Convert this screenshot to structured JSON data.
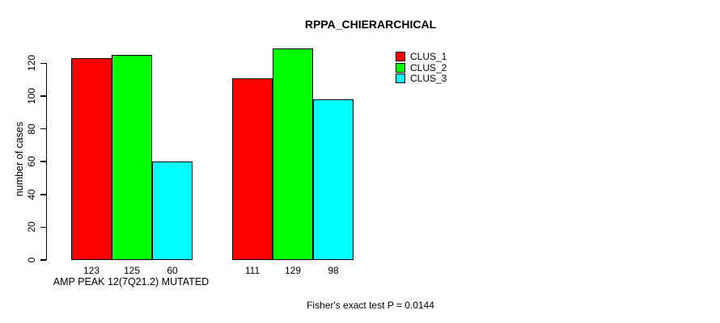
{
  "chart_data": {
    "type": "bar",
    "title": "RPPA_CHIERARCHICAL",
    "ylabel": "number of cases",
    "xlabel": "AMP PEAK 12(7Q21.2) MUTATED",
    "annotation": "Fisher's exact test P = 0.0144",
    "ylim": [
      0,
      120
    ],
    "yticks": [
      0,
      20,
      40,
      60,
      80,
      100,
      120
    ],
    "grid": false,
    "bar_value_labels": true,
    "legend_position": "top-right",
    "series": [
      {
        "name": "CLUS_1",
        "color": "#FF0000",
        "values": [
          123,
          111
        ]
      },
      {
        "name": "CLUS_2",
        "color": "#00FF00",
        "values": [
          125,
          129
        ]
      },
      {
        "name": "CLUS_3",
        "color": "#00FFFF",
        "values": [
          60,
          98
        ]
      }
    ],
    "colors": {
      "axis": "#000000",
      "text": "#000000",
      "background": "#FFFFFF"
    }
  }
}
